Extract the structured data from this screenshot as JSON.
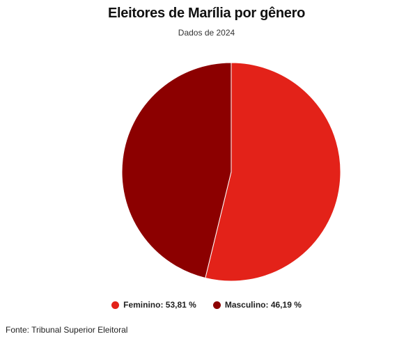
{
  "chart_data": {
    "type": "pie",
    "title": "Eleitores de Marília por gênero",
    "subtitle": "Dados de 2024",
    "slices": [
      {
        "name": "Feminino",
        "value": 53.81,
        "label": "Feminino: 53,81 %",
        "color": "#e32219"
      },
      {
        "name": "Masculino",
        "value": 46.19,
        "label": "Masculino: 46,19 %",
        "color": "#8c0000"
      }
    ],
    "legend_position": "bottom",
    "start": "top",
    "direction": "clockwise"
  },
  "source": "Fonte: Tribunal Superior Eleitoral"
}
